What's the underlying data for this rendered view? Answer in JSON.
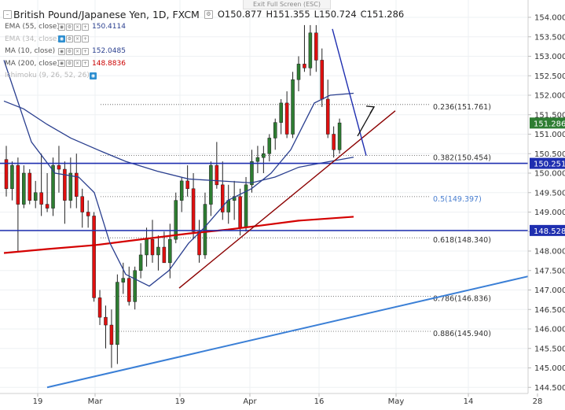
{
  "header": {
    "exit_fullscreen": "Exit Full Screen (ESC)",
    "title": "British Pound/Japanese Yen, 1D, FXCM",
    "open": "O150.877",
    "high": "H151.355",
    "low": "L150.724",
    "close": "C151.286"
  },
  "indicators": [
    {
      "label": "EMA (55, close)",
      "value": "150.4114",
      "color": "#2a3f8f",
      "dim": false,
      "eye": false
    },
    {
      "label": "EMA (34, close)",
      "value": "",
      "color": "#999999",
      "dim": true,
      "eye": true
    },
    {
      "label": "MA (10, close)",
      "value": "152.0485",
      "color": "#2a3f8f",
      "dim": false,
      "eye": false
    },
    {
      "label": "MA (200, close)",
      "value": "148.8836",
      "color": "#cc0000",
      "dim": false,
      "eye": false
    },
    {
      "label": "Ichimoku (9, 26, 52, 26)",
      "value": "",
      "color": "#999999",
      "dim": true,
      "eye": true
    }
  ],
  "price_axis": {
    "ticks": [
      "154.000",
      "153.500",
      "153.000",
      "152.500",
      "152.000",
      "151.500",
      "151.000",
      "150.500",
      "150.000",
      "149.500",
      "149.000",
      "148.500",
      "148.000",
      "147.500",
      "147.000",
      "146.500",
      "146.000",
      "145.500",
      "145.000",
      "144.500"
    ]
  },
  "time_axis": {
    "labels": [
      "19",
      "Mar",
      "19",
      "Apr",
      "16",
      "May",
      "14",
      "28"
    ]
  },
  "price_tags": [
    {
      "text": "151.286",
      "color": "#2e7d32"
    },
    {
      "text": "150.251",
      "color": "#1f2fb0"
    },
    {
      "text": "148.528",
      "color": "#1f2fb0"
    }
  ],
  "fibonacci": [
    {
      "label": "0.236(151.761)",
      "color": "#333333"
    },
    {
      "label": "0.382(150.454)",
      "color": "#333333"
    },
    {
      "label": "0.5(149.397)",
      "color": "#4a7fd0"
    },
    {
      "label": "0.618(148.340)",
      "color": "#333333"
    },
    {
      "label": "0.786(146.836)",
      "color": "#333333"
    },
    {
      "label": "0.886(145.940)",
      "color": "#333333"
    }
  ],
  "colors": {
    "up": "#2e7d32",
    "down": "#e01010",
    "ma200": "#d40000",
    "ema": "#2a3f8f",
    "hline": "#1f2fb0",
    "trend_red": "#8b0000",
    "trend_blue": "#3a7fd6"
  }
}
